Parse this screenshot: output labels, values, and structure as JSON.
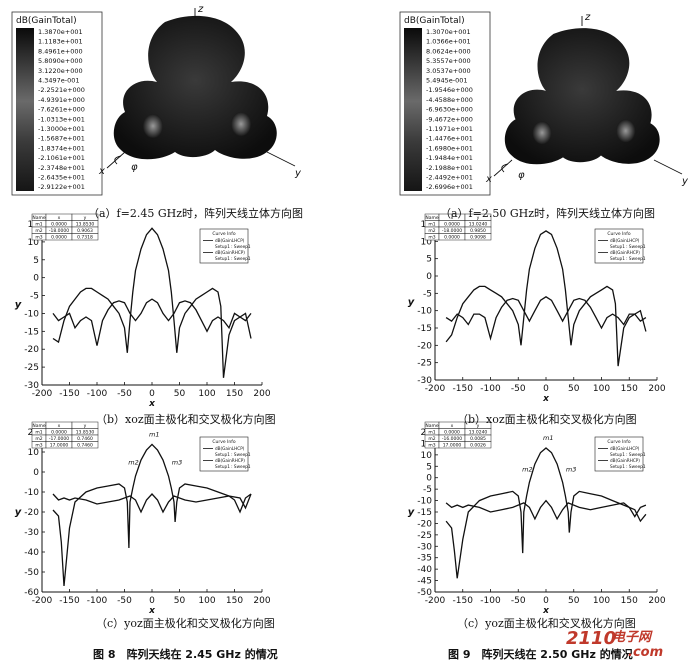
{
  "patterns3d": [
    {
      "colorbar_title": "dB(GainTotal)",
      "scale_values": [
        "1.3870e+001",
        "1.1183e+001",
        "8.4961e+000",
        "5.8090e+000",
        "3.1220e+000",
        "4.3497e-001",
        "-2.2521e+000",
        "-4.9391e+000",
        "-7.6261e+000",
        "-1.0313e+001",
        "-1.3000e+001",
        "-1.5687e+001",
        "-1.8374e+001",
        "-2.1061e+001",
        "-2.3748e+001",
        "-2.6435e+001",
        "-2.9122e+001"
      ],
      "axes": {
        "z": "z",
        "x": "x",
        "y": "y",
        "phi": "φ"
      },
      "caption": "（a）f=2.45 GHz时，阵列天线立体方向图"
    },
    {
      "colorbar_title": "dB(GainTotal)",
      "scale_values": [
        "1.3070e+001",
        "1.0366e+001",
        "8.0624e+000",
        "5.3557e+000",
        "3.0537e+000",
        "5.4945e-001",
        "-1.9546e+000",
        "-4.4588e+000",
        "-6.9630e+000",
        "-9.4672e+000",
        "-1.1971e+001",
        "-1.4476e+001",
        "-1.6980e+001",
        "-1.9484e+001",
        "-2.1988e+001",
        "-2.4492e+001",
        "-2.6996e+001"
      ],
      "axes": {
        "z": "z",
        "x": "x",
        "y": "y",
        "phi": "φ"
      },
      "caption": "（a）f=2.50 GHz时，阵列天线立体方向图"
    }
  ],
  "chart_data": [
    {
      "type": "line",
      "caption": "（b）xoz面主极化和交叉极化方向图",
      "xlabel": "x",
      "ylabel": "y",
      "xlim": [
        -200,
        200
      ],
      "ylim": [
        -30,
        15
      ],
      "xticks": [
        -200,
        -150,
        -100,
        -50,
        0,
        50,
        100,
        150,
        200
      ],
      "yticks": [
        -30,
        -25,
        -20,
        -15,
        -10,
        -5,
        0,
        5,
        10,
        15
      ],
      "marker_table": {
        "headers": [
          "Name",
          "x",
          "y"
        ],
        "rows": [
          [
            "m1",
            "0.0000",
            "13.8530"
          ],
          [
            "m2",
            "-18.0000",
            "0.9063"
          ],
          [
            "m3",
            "0.0000",
            "0.7318"
          ]
        ]
      },
      "legend": {
        "title": "Curve Info",
        "entries": [
          "dB(GainLHCP)",
          "Setup1 : Sweep1",
          "dB(GainRHCP)",
          "Setup1 : Sweep1"
        ]
      },
      "series": [
        {
          "x": [
            -180,
            -170,
            -160,
            -150,
            -140,
            -130,
            -120,
            -110,
            -100,
            -90,
            -80,
            -70,
            -60,
            -50,
            -45,
            -40,
            -35,
            -30,
            -20,
            -10,
            0,
            10,
            20,
            30,
            35,
            40,
            45,
            50,
            60,
            70,
            80,
            90,
            100,
            110,
            120,
            125,
            130,
            140,
            150,
            160,
            170,
            180
          ],
          "y": [
            -17,
            -18,
            -12,
            -8,
            -6,
            -4,
            -3,
            -3,
            -4,
            -5,
            -6,
            -8,
            -10,
            -14,
            -21,
            -12,
            -4,
            2,
            8,
            12,
            13.8,
            12,
            8,
            2,
            -4,
            -12,
            -21,
            -14,
            -10,
            -8,
            -6,
            -5,
            -4,
            -3,
            -4,
            -8,
            -28,
            -16,
            -12,
            -11,
            -10,
            -17
          ]
        },
        {
          "x": [
            -180,
            -170,
            -160,
            -150,
            -140,
            -130,
            -120,
            -110,
            -100,
            -90,
            -80,
            -70,
            -60,
            -50,
            -40,
            -30,
            -20,
            -10,
            0,
            10,
            20,
            30,
            40,
            50,
            60,
            70,
            80,
            90,
            100,
            110,
            120,
            130,
            140,
            150,
            160,
            170,
            180
          ],
          "y": [
            -10,
            -12,
            -11,
            -10,
            -14,
            -12,
            -11,
            -12,
            -19,
            -12,
            -9,
            -7,
            -6.5,
            -7,
            -10,
            -12,
            -10,
            -7,
            -6,
            -7,
            -10,
            -12,
            -10,
            -7,
            -6.5,
            -7,
            -9,
            -12,
            -15,
            -12,
            -11,
            -12,
            -14,
            -10,
            -11,
            -12,
            -10
          ]
        }
      ]
    },
    {
      "type": "line",
      "caption": "（b）xoz面主极化和交叉极化方向图",
      "xlabel": "x",
      "ylabel": "y",
      "xlim": [
        -200,
        200
      ],
      "ylim": [
        -30,
        15
      ],
      "xticks": [
        -200,
        -150,
        -100,
        -50,
        0,
        50,
        100,
        150,
        200
      ],
      "yticks": [
        -30,
        -25,
        -20,
        -15,
        -10,
        -5,
        0,
        5,
        10,
        15
      ],
      "marker_table": {
        "headers": [
          "Name",
          "x",
          "y"
        ],
        "rows": [
          [
            "m1",
            "0.0000",
            "13.0240"
          ],
          [
            "m2",
            "-18.0000",
            "0.9850"
          ],
          [
            "m3",
            "0.0000",
            "0.9098"
          ]
        ]
      },
      "legend": {
        "title": "Curve Info",
        "entries": [
          "dB(GainLHCP)",
          "Setup1 : Sweep1",
          "dB(GainRHCP)",
          "Setup1 : Sweep1"
        ]
      },
      "series": [
        {
          "x": [
            -180,
            -170,
            -160,
            -150,
            -140,
            -130,
            -120,
            -110,
            -100,
            -90,
            -80,
            -70,
            -60,
            -50,
            -45,
            -40,
            -35,
            -30,
            -20,
            -10,
            0,
            10,
            20,
            30,
            35,
            40,
            45,
            50,
            60,
            70,
            80,
            90,
            100,
            110,
            120,
            125,
            130,
            140,
            150,
            160,
            170,
            180
          ],
          "y": [
            -19,
            -17,
            -12,
            -8,
            -6,
            -4,
            -3,
            -3,
            -4,
            -5,
            -6,
            -8,
            -10,
            -14,
            -20,
            -12,
            -4,
            2,
            8,
            12,
            13,
            12,
            8,
            2,
            -4,
            -12,
            -20,
            -14,
            -10,
            -8,
            -6,
            -5,
            -4,
            -3,
            -4,
            -8,
            -26,
            -15,
            -12,
            -11,
            -10,
            -16
          ]
        },
        {
          "x": [
            -180,
            -170,
            -160,
            -150,
            -140,
            -130,
            -120,
            -110,
            -100,
            -90,
            -80,
            -70,
            -60,
            -50,
            -40,
            -30,
            -20,
            -10,
            0,
            10,
            20,
            30,
            40,
            50,
            60,
            70,
            80,
            90,
            100,
            110,
            120,
            130,
            140,
            150,
            160,
            170,
            180
          ],
          "y": [
            -12,
            -13,
            -11,
            -12,
            -14,
            -11,
            -11,
            -12,
            -18,
            -12,
            -9,
            -7,
            -6.5,
            -7,
            -10,
            -13,
            -10,
            -7,
            -6,
            -7,
            -10,
            -13,
            -10,
            -7,
            -6.5,
            -7,
            -9,
            -12,
            -15,
            -12,
            -11,
            -12,
            -14,
            -11,
            -11,
            -13,
            -12
          ]
        }
      ]
    },
    {
      "type": "line",
      "caption": "（c）yoz面主极化和交叉极化方向图",
      "xlabel": "x",
      "ylabel": "y",
      "xlim": [
        -200,
        200
      ],
      "ylim": [
        -60,
        20
      ],
      "xticks": [
        -200,
        -150,
        -100,
        -50,
        0,
        50,
        100,
        150,
        200
      ],
      "yticks": [
        -60,
        -50,
        -40,
        -30,
        -20,
        -10,
        0,
        10,
        20
      ],
      "marker_table": {
        "headers": [
          "Name",
          "x",
          "y"
        ],
        "rows": [
          [
            "m1",
            "0.0000",
            "13.8530"
          ],
          [
            "m2",
            "-17.0000",
            "0.7460"
          ],
          [
            "m3",
            "17.0000",
            "0.7460"
          ]
        ]
      },
      "legend": {
        "title": "Curve Info",
        "entries": [
          "dB(GainLHCP)",
          "Setup1 : Sweep1",
          "dB(GainRHCP)",
          "Setup1 : Sweep1"
        ]
      },
      "point_labels": [
        "m2",
        "m1",
        "m3"
      ],
      "series": [
        {
          "x": [
            -180,
            -170,
            -165,
            -160,
            -150,
            -140,
            -120,
            -100,
            -80,
            -60,
            -50,
            -45,
            -42,
            -40,
            -35,
            -30,
            -20,
            -10,
            0,
            10,
            20,
            30,
            35,
            40,
            42,
            45,
            50,
            60,
            80,
            100,
            120,
            140,
            160,
            170,
            180
          ],
          "y": [
            -19,
            -22,
            -35,
            -57,
            -28,
            -15,
            -10,
            -8,
            -7,
            -6,
            -8,
            -15,
            -38,
            -15,
            -8,
            -2,
            6,
            11,
            13.8,
            11,
            6,
            -2,
            -8,
            -15,
            -25,
            -15,
            -8,
            -6,
            -7,
            -8,
            -10,
            -12,
            -13,
            -18,
            -11
          ]
        },
        {
          "x": [
            -180,
            -170,
            -160,
            -150,
            -140,
            -120,
            -100,
            -80,
            -60,
            -40,
            -30,
            -20,
            -10,
            0,
            10,
            20,
            30,
            40,
            60,
            80,
            100,
            120,
            140,
            150,
            160,
            170,
            180
          ],
          "y": [
            -11,
            -14,
            -13,
            -14,
            -13,
            -14,
            -16,
            -15,
            -14,
            -12,
            -14,
            -20,
            -14,
            -11,
            -14,
            -20,
            -15,
            -12,
            -14,
            -15,
            -14,
            -13,
            -12,
            -14,
            -20,
            -13,
            -11
          ]
        }
      ]
    },
    {
      "type": "line",
      "caption": "（c）yoz面主极化和交叉极化方向图",
      "xlabel": "x",
      "ylabel": "y",
      "xlim": [
        -200,
        200
      ],
      "ylim": [
        -50,
        20
      ],
      "xticks": [
        -200,
        -150,
        -100,
        -50,
        0,
        50,
        100,
        150,
        200
      ],
      "yticks": [
        -50,
        -45,
        -40,
        -35,
        -30,
        -25,
        -20,
        -15,
        -10,
        -5,
        0,
        5,
        10,
        15,
        20
      ],
      "marker_table": {
        "headers": [
          "Name",
          "x",
          "y"
        ],
        "rows": [
          [
            "m1",
            "0.0000",
            "13.0240"
          ],
          [
            "m2",
            "-16.0000",
            "0.0085"
          ],
          [
            "m3",
            "17.0000",
            "0.0026"
          ]
        ]
      },
      "legend": {
        "title": "Curve Info",
        "entries": [
          "dB(GainLHCP)",
          "Setup1 : Sweep1",
          "dB(GainRHCP)",
          "Setup1 : Sweep1"
        ]
      },
      "point_labels": [
        "m2",
        "m1",
        "m3"
      ],
      "series": [
        {
          "x": [
            -180,
            -170,
            -165,
            -160,
            -150,
            -140,
            -120,
            -100,
            -80,
            -60,
            -50,
            -45,
            -42,
            -40,
            -35,
            -30,
            -20,
            -10,
            0,
            10,
            20,
            30,
            35,
            40,
            42,
            45,
            50,
            60,
            80,
            100,
            120,
            140,
            160,
            170,
            180
          ],
          "y": [
            -19,
            -22,
            -32,
            -44,
            -27,
            -15,
            -10,
            -8,
            -7,
            -6,
            -8,
            -15,
            -33,
            -15,
            -8,
            -2,
            6,
            11,
            13,
            11,
            6,
            -2,
            -8,
            -15,
            -24,
            -15,
            -8,
            -6,
            -7,
            -8,
            -10,
            -12,
            -14,
            -19,
            -16
          ]
        },
        {
          "x": [
            -180,
            -170,
            -160,
            -150,
            -140,
            -120,
            -100,
            -80,
            -60,
            -40,
            -30,
            -20,
            -10,
            0,
            10,
            20,
            30,
            40,
            60,
            80,
            100,
            120,
            140,
            150,
            160,
            170,
            180
          ],
          "y": [
            -11,
            -13,
            -12,
            -13,
            -12,
            -13,
            -15,
            -14,
            -13,
            -11,
            -13,
            -18,
            -13,
            -10,
            -13,
            -18,
            -14,
            -11,
            -13,
            -14,
            -13,
            -12,
            -11,
            -13,
            -17,
            -13,
            -12
          ]
        }
      ]
    }
  ],
  "figure_captions": [
    "图 8　阵列天线在 2.45 GHz 的情况",
    "图 9　阵列天线在 2.50 GHz 的情况"
  ],
  "watermark": {
    "main": "2110",
    "site": "电子网",
    "suffix": ".com"
  }
}
